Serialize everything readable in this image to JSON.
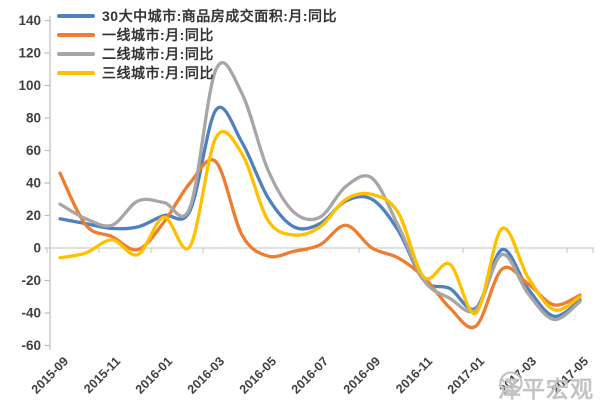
{
  "chart_data": {
    "type": "line",
    "title": "",
    "xlabel": "",
    "ylabel": "",
    "ylim": [
      -60,
      140
    ],
    "y_ticks": [
      140,
      120,
      100,
      80,
      60,
      40,
      20,
      0,
      -20,
      -40,
      -60
    ],
    "grid": false,
    "legend_position": "top-left",
    "x": [
      "2015-09",
      "2015-10",
      "2015-11",
      "2015-12",
      "2016-01",
      "2016-02",
      "2016-03",
      "2016-04",
      "2016-05",
      "2016-06",
      "2016-07",
      "2016-08",
      "2016-09",
      "2016-10",
      "2016-11",
      "2016-12",
      "2017-01",
      "2017-02",
      "2017-03",
      "2017-04",
      "2017-05"
    ],
    "x_axis_labels": [
      "2015-09",
      "2015-11",
      "2016-01",
      "2016-03",
      "2016-05",
      "2016-07",
      "2016-09",
      "2016-11",
      "2017-01",
      "2017-03",
      "2017-05"
    ],
    "series": [
      {
        "name": "30大中城市:商品房成交面积:月:同比",
        "color": "#4E81BD",
        "values": [
          18,
          15,
          12,
          13,
          20,
          23,
          85,
          65,
          31,
          13,
          15,
          29,
          30,
          11,
          -20,
          -25,
          -37,
          -1,
          -25,
          -42,
          -32
        ]
      },
      {
        "name": "一线城市:月:同比",
        "color": "#ED7D31",
        "values": [
          46,
          14,
          7,
          -1,
          16,
          40,
          53,
          8,
          -5,
          -2,
          2,
          14,
          0,
          -6,
          -18,
          -37,
          -48,
          -13,
          -22,
          -35,
          -29
        ]
      },
      {
        "name": "二线城市:月:同比",
        "color": "#A6A6A6",
        "values": [
          27,
          18,
          14,
          29,
          28,
          25,
          110,
          95,
          48,
          22,
          19,
          38,
          43,
          14,
          -20,
          -31,
          -38,
          -4,
          -28,
          -44,
          -33
        ]
      },
      {
        "name": "三线城市:月:同比",
        "color": "#FFC000",
        "values": [
          -6,
          -3,
          5,
          -4,
          19,
          1,
          68,
          58,
          17,
          8,
          13,
          30,
          33,
          22,
          -18,
          -10,
          -40,
          12,
          -18,
          -38,
          -30
        ]
      }
    ],
    "axis_color": "#bfbfbf"
  },
  "watermark": {
    "text": "泽平宏观"
  }
}
